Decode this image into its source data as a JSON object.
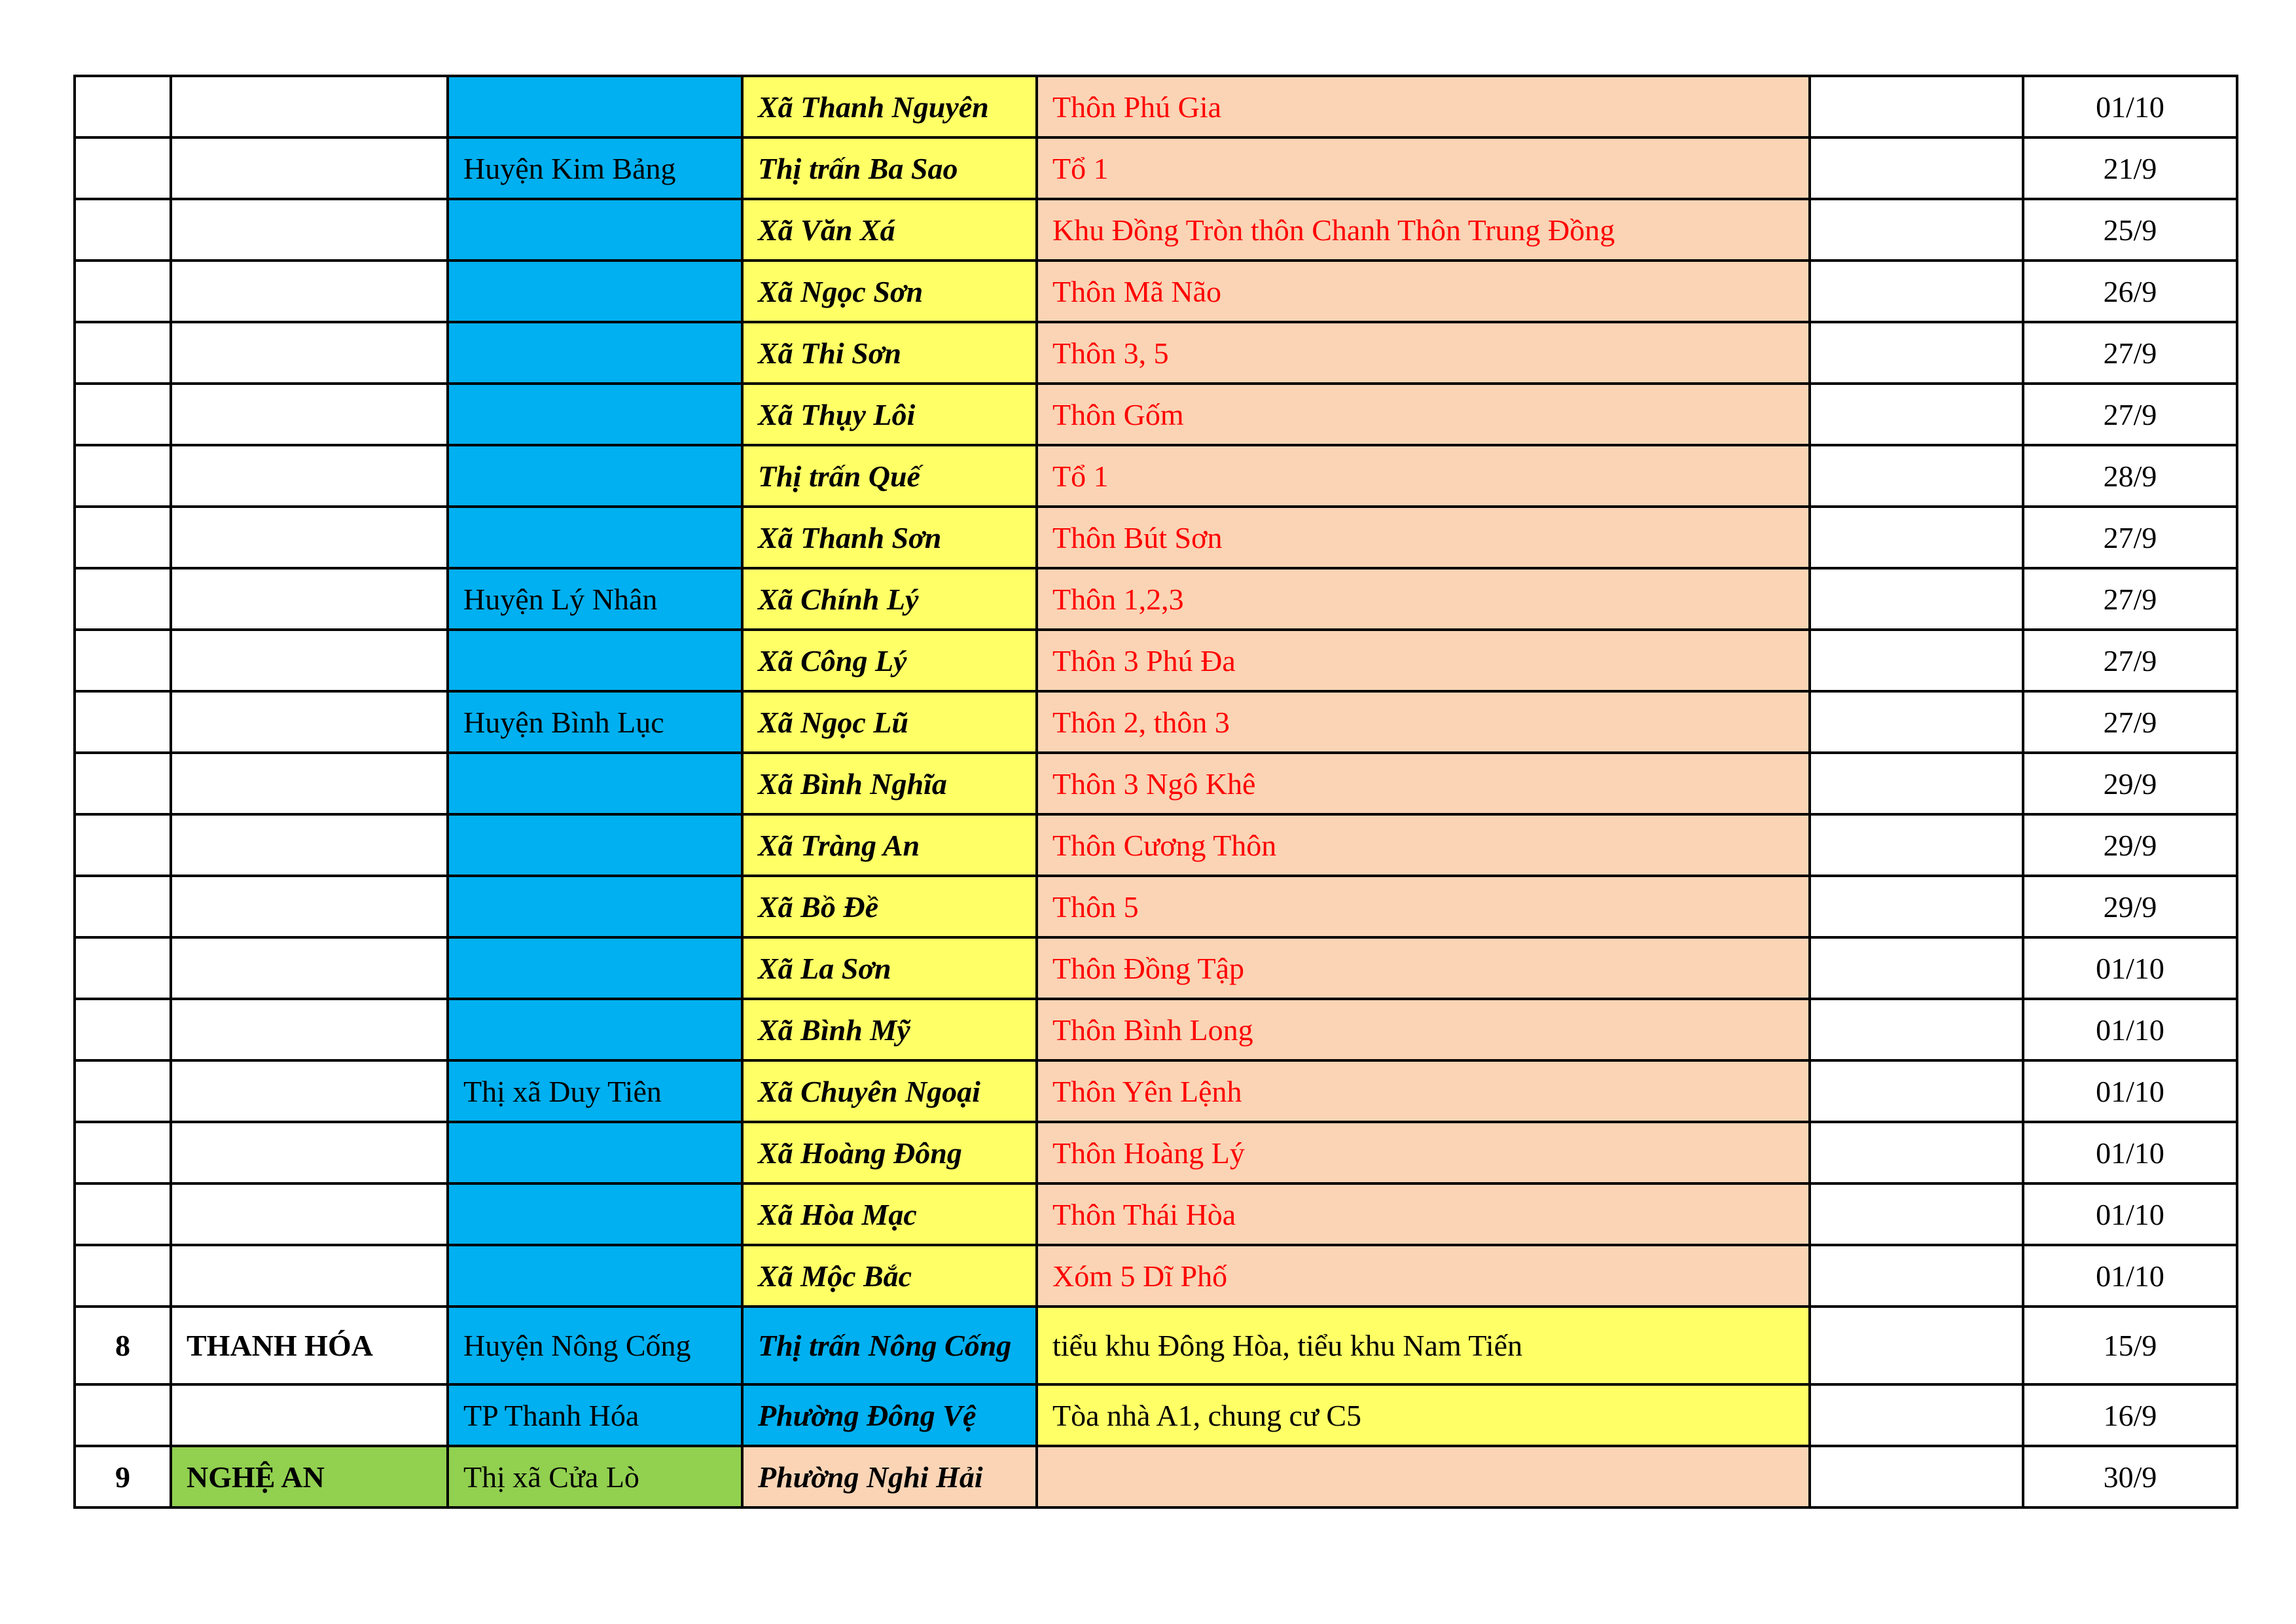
{
  "colors": {
    "district_blue": "#00b0f0",
    "commune_yellow": "#ffff66",
    "village_peach": "#fad4b5",
    "nghe_an_green": "#92d050",
    "village_text_red": "#ff0000"
  },
  "rows": [
    {
      "no": "",
      "province": "",
      "district": "",
      "commune": "Xã Thanh Nguyên",
      "village": "Thôn Phú Gia",
      "extra": "",
      "date": "01/10"
    },
    {
      "no": "",
      "province": "",
      "district": "Huyện Kim Bảng",
      "commune": "Thị trấn Ba Sao",
      "village": "Tổ 1",
      "extra": "",
      "date": "21/9"
    },
    {
      "no": "",
      "province": "",
      "district": "",
      "commune": "Xã Văn Xá",
      "village": "Khu Đồng Tròn thôn Chanh Thôn Trung Đồng",
      "extra": "",
      "date": "25/9"
    },
    {
      "no": "",
      "province": "",
      "district": "",
      "commune": "Xã Ngọc Sơn",
      "village": "Thôn Mã Não",
      "extra": "",
      "date": "26/9"
    },
    {
      "no": "",
      "province": "",
      "district": "",
      "commune": "Xã Thi Sơn",
      "village": "Thôn 3, 5",
      "extra": "",
      "date": "27/9"
    },
    {
      "no": "",
      "province": "",
      "district": "",
      "commune": "Xã Thụy Lôi",
      "village": "Thôn Gốm",
      "extra": "",
      "date": "27/9"
    },
    {
      "no": "",
      "province": "",
      "district": "",
      "commune": "Thị trấn Quế",
      "village": "Tổ 1",
      "extra": "",
      "date": "28/9"
    },
    {
      "no": "",
      "province": "",
      "district": "",
      "commune": "Xã Thanh Sơn",
      "village": "Thôn Bút Sơn",
      "extra": "",
      "date": "27/9"
    },
    {
      "no": "",
      "province": "",
      "district": "Huyện Lý Nhân",
      "commune": "Xã Chính Lý",
      "village": "Thôn 1,2,3",
      "extra": "",
      "date": "27/9"
    },
    {
      "no": "",
      "province": "",
      "district": "",
      "commune": "Xã Công Lý",
      "village": "Thôn 3 Phú Đa",
      "extra": "",
      "date": "27/9"
    },
    {
      "no": "",
      "province": "",
      "district": "Huyện Bình Lục",
      "commune": "Xã Ngọc Lũ",
      "village": "Thôn 2, thôn 3",
      "extra": "",
      "date": "27/9"
    },
    {
      "no": "",
      "province": "",
      "district": "",
      "commune": "Xã Bình Nghĩa",
      "village": "Thôn 3 Ngô Khê",
      "extra": "",
      "date": "29/9"
    },
    {
      "no": "",
      "province": "",
      "district": "",
      "commune": "Xã Tràng An",
      "village": "Thôn Cương Thôn",
      "extra": "",
      "date": "29/9"
    },
    {
      "no": "",
      "province": "",
      "district": "",
      "commune": "Xã Bồ Đề",
      "village": "Thôn 5",
      "extra": "",
      "date": "29/9"
    },
    {
      "no": "",
      "province": "",
      "district": "",
      "commune": "Xã La Sơn",
      "village": "Thôn Đồng Tập",
      "extra": "",
      "date": "01/10"
    },
    {
      "no": "",
      "province": "",
      "district": "",
      "commune": "Xã Bình Mỹ",
      "village": "Thôn Bình Long",
      "extra": "",
      "date": "01/10"
    },
    {
      "no": "",
      "province": "",
      "district": "Thị xã Duy Tiên",
      "commune": "Xã Chuyên Ngoại",
      "village": "Thôn Yên Lệnh",
      "extra": "",
      "date": "01/10"
    },
    {
      "no": "",
      "province": "",
      "district": "",
      "commune": "Xã Hoàng Đông",
      "village": "Thôn Hoàng Lý",
      "extra": "",
      "date": "01/10"
    },
    {
      "no": "",
      "province": "",
      "district": "",
      "commune": "Xã Hòa Mạc",
      "village": "Thôn Thái Hòa",
      "extra": "",
      "date": "01/10"
    },
    {
      "no": "",
      "province": "",
      "district": "",
      "commune": "Xã Mộc Bắc",
      "village": "Xóm 5 Dĩ Phố",
      "extra": "",
      "date": "01/10"
    },
    {
      "no": "8",
      "province": "THANH HÓA",
      "district": "Huyện Nông Cống",
      "commune": "Thị trấn Nông Cống",
      "village": "tiểu khu Đông Hòa, tiểu khu Nam Tiến",
      "extra": "",
      "date": "15/9"
    },
    {
      "no": "",
      "province": "",
      "district": "TP Thanh Hóa",
      "commune": "Phường Đông Vệ",
      "village": "Tòa nhà A1, chung cư C5",
      "extra": "",
      "date": "16/9"
    },
    {
      "no": "9",
      "province": "NGHỆ AN",
      "district": "Thị xã Cửa Lò",
      "commune": "Phường Nghi Hải",
      "village": "",
      "extra": "",
      "date": "30/9"
    }
  ]
}
